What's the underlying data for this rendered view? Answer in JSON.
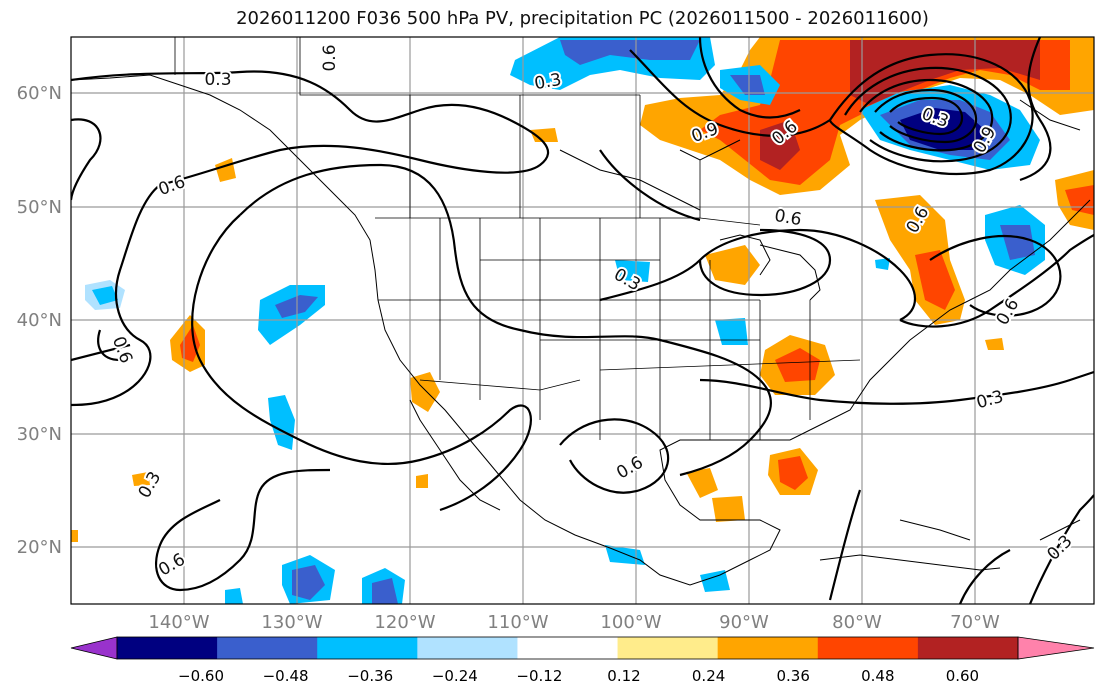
{
  "title": "2026011200 F036 500 hPa PV, precipitation PC (2026011500 - 2026011600)",
  "lat_labels": [
    "60°N",
    "50°N",
    "40°N",
    "30°N",
    "20°N"
  ],
  "lon_labels": [
    "140°W",
    "130°W",
    "120°W",
    "110°W",
    "100°W",
    "90°W",
    "80°W",
    "70°W"
  ],
  "colorbar": {
    "colors": [
      "#9932cc",
      "#000080",
      "#3a5fcd",
      "#00bfff",
      "#b0e2ff",
      "#ffffff",
      "#ffec8b",
      "#ffa500",
      "#ff4500",
      "#b22222",
      "#ff82ab"
    ],
    "labels": [
      "−0.60",
      "−0.48",
      "−0.36",
      "−0.24",
      "−0.12",
      "0.12",
      "0.24",
      "0.36",
      "0.48",
      "0.60"
    ]
  },
  "contour_labels": [
    {
      "text": "0.3",
      "angle": 0
    },
    {
      "text": "0.6",
      "angle": -20
    },
    {
      "text": "0.6",
      "angle": -90
    },
    {
      "text": "0.3",
      "angle": -60
    },
    {
      "text": "0.6",
      "angle": -30
    },
    {
      "text": "0.6",
      "angle": 70
    },
    {
      "text": "0.3",
      "angle": -10
    },
    {
      "text": "0.9",
      "angle": -20
    },
    {
      "text": "0.6",
      "angle": -40
    },
    {
      "text": "0.6",
      "angle": 10
    },
    {
      "text": "0.6",
      "angle": -60
    },
    {
      "text": "0.3",
      "angle": 30
    },
    {
      "text": "0.6",
      "angle": -30
    },
    {
      "text": "0.3",
      "angle": -15
    },
    {
      "text": "0.3",
      "angle": -45
    },
    {
      "text": "0.9",
      "angle": -60
    },
    {
      "text": "0.3",
      "angle": 20
    },
    {
      "text": "0.6",
      "angle": -60
    }
  ]
}
